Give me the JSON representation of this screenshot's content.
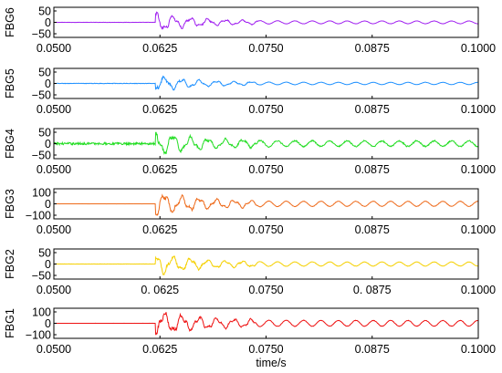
{
  "chart_data": {
    "type": "line",
    "layout": "stacked-panels",
    "shared_x": true,
    "xlabel": "time/s",
    "xlim": [
      0.05,
      0.1
    ],
    "grid": false,
    "panels": [
      {
        "name": "FBG6",
        "ylabel": "FBG6",
        "ylim": [
          -50,
          50
        ],
        "yticks": [
          "50",
          "0",
          "−50"
        ],
        "ytick_values": [
          50,
          0,
          -50
        ],
        "xticks": [
          "0.0500",
          "0.0625",
          "0.0750",
          "0.0875",
          "0.1000"
        ],
        "color": "#a020f0",
        "onset": 0.062,
        "peak_amplitude": 35,
        "steady_amplitude": 6,
        "baseline_noise": 0.5,
        "period": 0.00205,
        "series": [
          {
            "x": [
              0.05,
              0.062,
              0.0625,
              0.063,
              0.065,
              0.0675,
              0.07,
              0.075,
              0.0875,
              0.1
            ],
            "y": [
              0,
              0,
              -38,
              25,
              -15,
              22,
              -12,
              8,
              -6,
              0
            ]
          }
        ]
      },
      {
        "name": "FBG5",
        "ylabel": "FBG5",
        "ylim": [
          -50,
          50
        ],
        "yticks": [
          "50",
          "0",
          "−50"
        ],
        "ytick_values": [
          50,
          0,
          -50
        ],
        "xticks": [
          "0.0500",
          "0.0625",
          "0.0750",
          "0.0875",
          "0.1000"
        ],
        "color": "#1e90ff",
        "onset": 0.062,
        "peak_amplitude": 30,
        "steady_amplitude": 5,
        "baseline_noise": 1,
        "period": 0.00205,
        "series": [
          {
            "x": [
              0.05,
              0.062,
              0.0625,
              0.063,
              0.065,
              0.07,
              0.075,
              0.0875,
              0.1
            ],
            "y": [
              0,
              0,
              40,
              -10,
              15,
              -12,
              6,
              -4,
              0
            ]
          }
        ]
      },
      {
        "name": "FBG4",
        "ylabel": "FBG4",
        "ylim": [
          -50,
          50
        ],
        "yticks": [
          "50",
          "0",
          "−50"
        ],
        "ytick_values": [
          50,
          0,
          -50
        ],
        "xticks": [
          "0.0500",
          "0.0625",
          "0.0750",
          "0.0875",
          "0.1000"
        ],
        "color": "#22dd22",
        "onset": 0.062,
        "peak_amplitude": 45,
        "steady_amplitude": 12,
        "baseline_noise": 5,
        "period": 0.00205,
        "series": [
          {
            "x": [
              0.05,
              0.062,
              0.0625,
              0.063,
              0.065,
              0.07,
              0.075,
              0.0875,
              0.1
            ],
            "y": [
              0,
              0,
              50,
              -45,
              40,
              -35,
              25,
              -15,
              0
            ]
          }
        ]
      },
      {
        "name": "FBG3",
        "ylabel": "FBG3",
        "ylim": [
          -100,
          100
        ],
        "yticks": [
          "100",
          "0",
          "−100"
        ],
        "ytick_values": [
          100,
          0,
          -100
        ],
        "xticks": [
          "0.0500",
          "0.0625",
          "0.0750",
          "0.0875",
          "0.1000"
        ],
        "color": "#ee6a1a",
        "onset": 0.062,
        "peak_amplitude": 90,
        "steady_amplitude": 22,
        "baseline_noise": 0.5,
        "period": 0.00205,
        "series": [
          {
            "x": [
              0.05,
              0.062,
              0.0625,
              0.063,
              0.065,
              0.0705,
              0.075,
              0.0875,
              0.1
            ],
            "y": [
              0,
              0,
              90,
              -95,
              60,
              80,
              -50,
              25,
              0
            ]
          }
        ]
      },
      {
        "name": "FBG2",
        "ylabel": "FBG2",
        "ylim": [
          -50,
          50
        ],
        "yticks": [
          "50",
          "0",
          "−50"
        ],
        "ytick_values": [
          50,
          0,
          -50
        ],
        "xticks": [
          "0.0500",
          "0. 0625",
          "0.0750",
          "0. 0875",
          "0.1000"
        ],
        "color": "#f5d000",
        "onset": 0.062,
        "peak_amplitude": 40,
        "steady_amplitude": 9,
        "baseline_noise": 0.5,
        "period": 0.00205,
        "series": [
          {
            "x": [
              0.05,
              0.062,
              0.0625,
              0.063,
              0.065,
              0.07,
              0.075,
              0.0875,
              0.1
            ],
            "y": [
              0,
              0,
              38,
              -40,
              30,
              -20,
              15,
              -9,
              0
            ]
          }
        ]
      },
      {
        "name": "FBG1",
        "ylabel": "FBG1",
        "ylim": [
          -100,
          100
        ],
        "yticks": [
          "100",
          "0",
          "−100"
        ],
        "ytick_values": [
          100,
          0,
          -100
        ],
        "xticks": [
          "0.0500",
          "0.0625",
          "0.0750",
          "0.0875",
          "0.1000"
        ],
        "color": "#ee1111",
        "onset": 0.062,
        "peak_amplitude": 95,
        "steady_amplitude": 25,
        "baseline_noise": 0.5,
        "period": 0.00205,
        "series": [
          {
            "x": [
              0.05,
              0.062,
              0.0625,
              0.063,
              0.065,
              0.07,
              0.075,
              0.0875,
              0.1
            ],
            "y": [
              0,
              0,
              100,
              -90,
              70,
              -50,
              40,
              -25,
              0
            ]
          }
        ]
      }
    ]
  }
}
